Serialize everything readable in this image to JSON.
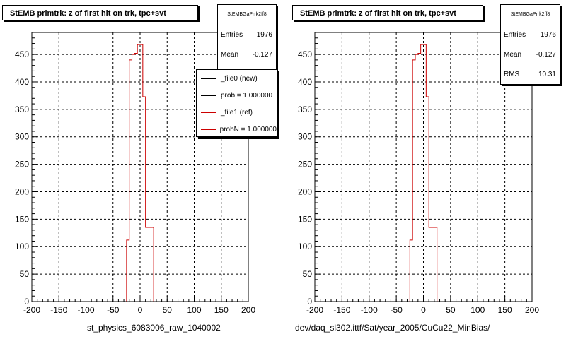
{
  "colors": {
    "new": "#000000",
    "ref": "#cc0000",
    "grid": "#000000"
  },
  "chart_data": [
    {
      "type": "step",
      "title": "StEMB primtrk: z of first hit on trk, tpc+svt",
      "xlabel": "st_physics_6083006_raw_1040002",
      "xlim": [
        -200,
        200
      ],
      "ylim": [
        0,
        490
      ],
      "xticks": [
        "-200",
        "-150",
        "-100",
        "-50",
        "0",
        "50",
        "100",
        "150",
        "200"
      ],
      "yticks": [
        "0",
        "50",
        "100",
        "150",
        "200",
        "250",
        "300",
        "350",
        "400",
        "450"
      ],
      "grid": true,
      "stats": {
        "header": "StEMBGaPrrk2ff8",
        "entries_label": "Entries",
        "entries": "1976",
        "mean_label": "Mean",
        "mean": "-0.127"
      },
      "legend": {
        "placement": "top-right",
        "entries": [
          {
            "label": "_file0 (new)",
            "color": "#000000"
          },
          {
            "label": "prob = 1.000000",
            "color": "#000000"
          },
          {
            "label": "_file1 (ref)",
            "color": "#cc0000"
          },
          {
            "label": "probN = 1.000000",
            "color": "#cc0000"
          }
        ]
      },
      "series": [
        {
          "color": "#cc0000",
          "edges": [
            -25,
            -20,
            -15,
            -10,
            -5,
            0,
            5,
            10,
            15,
            20,
            25
          ],
          "values": [
            112,
            440,
            450,
            452,
            468,
            468,
            373,
            135,
            135,
            135
          ]
        }
      ]
    },
    {
      "type": "step",
      "title": "StEMB primtrk: z of first hit on trk, tpc+svt",
      "xlabel": "dev/daq_sl302.ittf/Sat/year_2005/CuCu22_MinBias/",
      "xlim": [
        -200,
        200
      ],
      "ylim": [
        0,
        490
      ],
      "xticks": [
        "-200",
        "-150",
        "-100",
        "-50",
        "0",
        "50",
        "100",
        "150",
        "200"
      ],
      "yticks": [
        "0",
        "50",
        "100",
        "150",
        "200",
        "250",
        "300",
        "350",
        "400",
        "450"
      ],
      "grid": true,
      "stats": {
        "header": "StEMBGaPrrk2ff8",
        "entries_label": "Entries",
        "entries": "1976",
        "mean_label": "Mean",
        "mean": "-0.127",
        "rms_label": "RMS",
        "rms": "10.31"
      },
      "series": [
        {
          "color": "#cc0000",
          "edges": [
            -25,
            -20,
            -15,
            -10,
            -5,
            0,
            5,
            10,
            15,
            20,
            25
          ],
          "values": [
            112,
            440,
            450,
            452,
            468,
            468,
            373,
            135,
            135,
            135
          ]
        }
      ]
    }
  ]
}
